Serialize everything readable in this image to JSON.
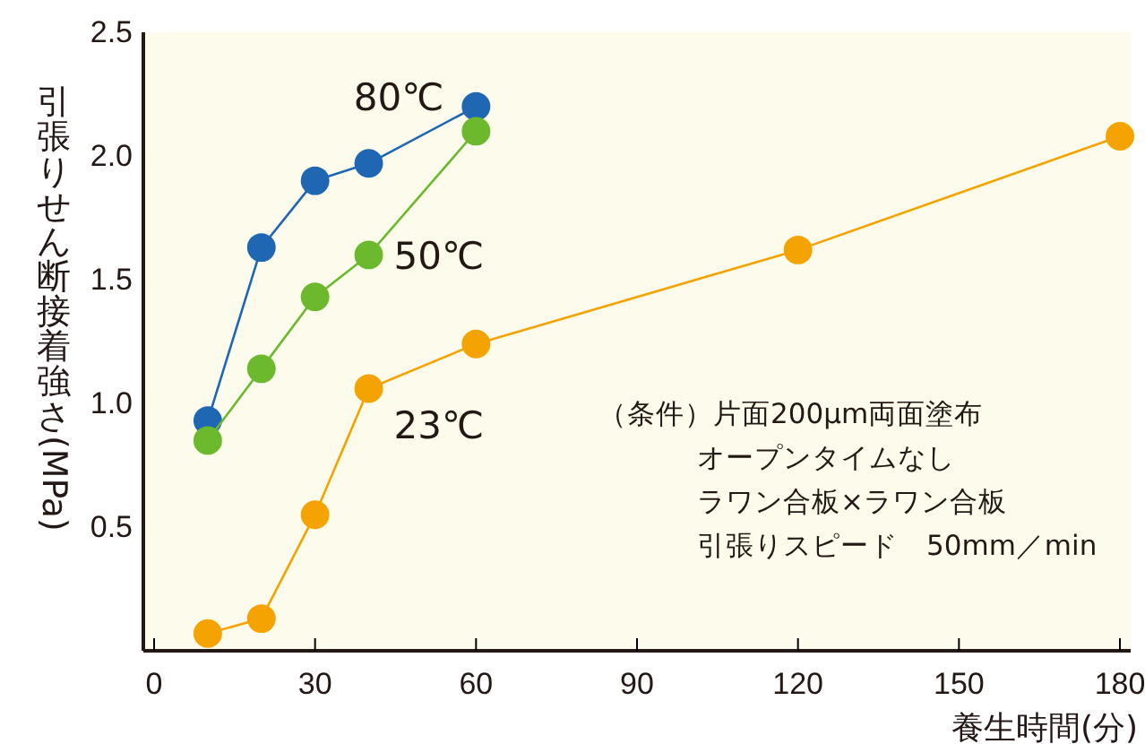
{
  "chart_data": {
    "type": "line",
    "xlabel": "養生時間(分)",
    "ylabel": "引張りせん断接着強さ(MPa)",
    "xlim": [
      -2,
      182
    ],
    "xticks": [
      0,
      30,
      60,
      90,
      120,
      150,
      180
    ],
    "ylim": [
      0,
      2.5
    ],
    "yticks": [
      0.5,
      {
        "value": 1,
        "label": "1.0"
      },
      1.5,
      {
        "value": 2,
        "label": "2.0"
      },
      2.5
    ],
    "marker": "circle",
    "legend": false,
    "grid": false,
    "series": [
      {
        "name": "80℃",
        "color": "#1f66b3",
        "x": [
          10,
          20,
          30,
          40,
          60
        ],
        "values": [
          0.93,
          1.63,
          1.9,
          1.97,
          2.2
        ]
      },
      {
        "name": "50℃",
        "color": "#6cb92e",
        "x": [
          10,
          20,
          30,
          40,
          60
        ],
        "values": [
          0.85,
          1.14,
          1.43,
          1.6,
          2.1
        ]
      },
      {
        "name": "23℃",
        "color": "#f5a300",
        "x": [
          10,
          20,
          30,
          40,
          60,
          120,
          180
        ],
        "values": [
          0.07,
          0.13,
          0.55,
          1.06,
          1.24,
          1.62,
          2.08
        ]
      }
    ],
    "annotations": [
      "（条件）片面200μm両面塗布",
      "オープンタイムなし",
      "ラワン合板×ラワン合板",
      "引張りスピード　50mm／min"
    ]
  }
}
